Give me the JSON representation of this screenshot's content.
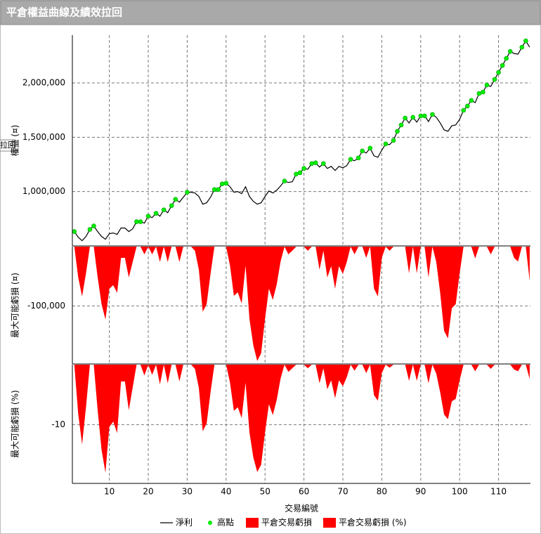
{
  "title": "平倉權益曲線及績效拉回",
  "overlay_label": "拉回",
  "chart_data": [
    {
      "type": "line",
      "y_label": "權益 (¤)",
      "grid": true,
      "xlim": [
        0.5,
        118.2
      ],
      "xticks": [
        10,
        20,
        30,
        40,
        50,
        60,
        70,
        80,
        90,
        100,
        110
      ],
      "ylim": [
        500000,
        2440000
      ],
      "yticks": [
        {
          "value": 1000000,
          "label": "1,000,000"
        },
        {
          "value": 1500000,
          "label": "1,500,000"
        },
        {
          "value": 2000000,
          "label": "2,000,000"
        }
      ],
      "x": [
        1,
        2,
        3,
        4,
        5,
        6,
        7,
        8,
        9,
        10,
        11,
        12,
        13,
        14,
        15,
        16,
        17,
        18,
        19,
        20,
        21,
        22,
        23,
        24,
        25,
        26,
        27,
        28,
        29,
        30,
        31,
        32,
        33,
        34,
        35,
        36,
        37,
        38,
        39,
        40,
        41,
        42,
        43,
        44,
        45,
        46,
        47,
        48,
        49,
        50,
        51,
        52,
        53,
        54,
        55,
        56,
        57,
        58,
        59,
        60,
        61,
        62,
        63,
        64,
        65,
        66,
        67,
        68,
        69,
        70,
        71,
        72,
        73,
        74,
        75,
        76,
        77,
        78,
        79,
        80,
        81,
        82,
        83,
        84,
        85,
        86,
        87,
        88,
        89,
        90,
        91,
        92,
        93,
        94,
        95,
        96,
        97,
        98,
        99,
        100,
        101,
        102,
        103,
        104,
        105,
        106,
        107,
        108,
        109,
        110,
        111,
        112,
        113,
        114,
        115,
        116,
        117,
        118
      ],
      "series": [
        {
          "name": "淨利",
          "style": "line",
          "color": "#000000",
          "values": [
            632000,
            580000,
            548000,
            587000,
            652000,
            684000,
            632000,
            587000,
            561000,
            613000,
            619000,
            606000,
            665000,
            665000,
            632000,
            658000,
            723000,
            723000,
            710000,
            774000,
            761000,
            800000,
            774000,
            832000,
            806000,
            871000,
            929000,
            903000,
            948000,
            994000,
            994000,
            987000,
            955000,
            884000,
            897000,
            948000,
            1019000,
            1019000,
            1071000,
            1077000,
            1045000,
            994000,
            1000000,
            981000,
            1045000,
            955000,
            910000,
            884000,
            897000,
            955000,
            1006000,
            987000,
            1013000,
            1052000,
            1097000,
            1084000,
            1090000,
            1161000,
            1174000,
            1213000,
            1206000,
            1258000,
            1265000,
            1226000,
            1258000,
            1213000,
            1232000,
            1194000,
            1232000,
            1219000,
            1239000,
            1297000,
            1284000,
            1310000,
            1374000,
            1355000,
            1400000,
            1329000,
            1316000,
            1381000,
            1439000,
            1432000,
            1471000,
            1555000,
            1613000,
            1677000,
            1632000,
            1684000,
            1639000,
            1697000,
            1697000,
            1645000,
            1710000,
            1684000,
            1632000,
            1568000,
            1555000,
            1606000,
            1613000,
            1665000,
            1748000,
            1787000,
            1839000,
            1819000,
            1903000,
            1916000,
            1981000,
            1968000,
            2032000,
            2097000,
            2161000,
            2226000,
            2290000,
            2271000,
            2265000,
            2329000,
            2387000,
            2329000
          ]
        },
        {
          "name": "高點",
          "style": "marker",
          "color": "#00ee00",
          "values": [
            632000,
            null,
            null,
            null,
            652000,
            684000,
            null,
            null,
            null,
            null,
            null,
            null,
            null,
            null,
            null,
            null,
            723000,
            723000,
            null,
            774000,
            null,
            800000,
            null,
            832000,
            null,
            871000,
            929000,
            null,
            null,
            994000,
            null,
            null,
            null,
            null,
            null,
            null,
            1019000,
            1019000,
            1071000,
            1077000,
            null,
            null,
            null,
            null,
            null,
            null,
            null,
            null,
            null,
            null,
            null,
            null,
            null,
            null,
            1097000,
            null,
            null,
            1161000,
            1174000,
            1213000,
            null,
            1258000,
            1265000,
            null,
            1258000,
            null,
            null,
            null,
            null,
            null,
            null,
            1297000,
            null,
            1310000,
            1374000,
            null,
            1400000,
            null,
            null,
            null,
            1439000,
            null,
            1471000,
            1555000,
            1613000,
            1677000,
            null,
            1684000,
            null,
            1697000,
            1697000,
            null,
            1710000,
            null,
            null,
            null,
            null,
            null,
            null,
            null,
            1748000,
            1787000,
            1839000,
            null,
            1903000,
            1916000,
            1981000,
            null,
            2032000,
            2097000,
            2161000,
            2226000,
            2290000,
            null,
            null,
            2329000,
            2387000,
            null
          ]
        }
      ]
    },
    {
      "type": "area",
      "y_label": "最大可能虧損 (¤)",
      "grid": true,
      "xlim": [
        0.5,
        118.2
      ],
      "xticks": [
        10,
        20,
        30,
        40,
        50,
        60,
        70,
        80,
        90,
        100,
        110
      ],
      "ylim": [
        -198000,
        0
      ],
      "yticks": [
        {
          "value": -100000,
          "label": "-100,000"
        }
      ],
      "x": [
        1,
        2,
        3,
        4,
        5,
        6,
        7,
        8,
        9,
        10,
        11,
        12,
        13,
        14,
        15,
        16,
        17,
        18,
        19,
        20,
        21,
        22,
        23,
        24,
        25,
        26,
        27,
        28,
        29,
        30,
        31,
        32,
        33,
        34,
        35,
        36,
        37,
        38,
        39,
        40,
        41,
        42,
        43,
        44,
        45,
        46,
        47,
        48,
        49,
        50,
        51,
        52,
        53,
        54,
        55,
        56,
        57,
        58,
        59,
        60,
        61,
        62,
        63,
        64,
        65,
        66,
        67,
        68,
        69,
        70,
        71,
        72,
        73,
        74,
        75,
        76,
        77,
        78,
        79,
        80,
        81,
        82,
        83,
        84,
        85,
        86,
        87,
        88,
        89,
        90,
        91,
        92,
        93,
        94,
        95,
        96,
        97,
        98,
        99,
        100,
        101,
        102,
        103,
        104,
        105,
        106,
        107,
        108,
        109,
        110,
        111,
        112,
        113,
        114,
        115,
        116,
        117,
        118
      ],
      "series": [
        {
          "name": "平倉交易虧損",
          "style": "area",
          "color": "#ff0000",
          "values": [
            0,
            -52000,
            -84000,
            -45000,
            0,
            0,
            -52000,
            -97000,
            -123000,
            -71000,
            -65000,
            -78000,
            -19000,
            -19000,
            -52000,
            -26000,
            0,
            0,
            -13000,
            0,
            -13000,
            0,
            -26000,
            0,
            -26000,
            0,
            0,
            -26000,
            0,
            0,
            0,
            -7000,
            -39000,
            -110000,
            -97000,
            -46000,
            0,
            0,
            0,
            0,
            -32000,
            -83000,
            -77000,
            -96000,
            -32000,
            -122000,
            -167000,
            -193000,
            -180000,
            -122000,
            -71000,
            -90000,
            -64000,
            -25000,
            0,
            -13000,
            -7000,
            0,
            0,
            0,
            -7000,
            0,
            0,
            -39000,
            -7000,
            -52000,
            -33000,
            -71000,
            -33000,
            -46000,
            -26000,
            0,
            -13000,
            0,
            0,
            -19000,
            0,
            -71000,
            -84000,
            -19000,
            0,
            -7000,
            0,
            0,
            0,
            0,
            -45000,
            0,
            -45000,
            0,
            0,
            -52000,
            0,
            -26000,
            -78000,
            -142000,
            -155000,
            -104000,
            -97000,
            -45000,
            0,
            0,
            0,
            -20000,
            0,
            0,
            0,
            -13000,
            0,
            0,
            0,
            0,
            0,
            -19000,
            -25000,
            0,
            0,
            -58000
          ]
        }
      ]
    },
    {
      "type": "area",
      "y_label": "最大可能虧損 (%)",
      "x_label": "交易編號",
      "grid": true,
      "xlim": [
        0.5,
        118.2
      ],
      "xticks": [
        10,
        20,
        30,
        40,
        50,
        60,
        70,
        80,
        90,
        100,
        110
      ],
      "ylim": [
        -19.8,
        0
      ],
      "yticks": [
        -10
      ],
      "x": [
        1,
        2,
        3,
        4,
        5,
        6,
        7,
        8,
        9,
        10,
        11,
        12,
        13,
        14,
        15,
        16,
        17,
        18,
        19,
        20,
        21,
        22,
        23,
        24,
        25,
        26,
        27,
        28,
        29,
        30,
        31,
        32,
        33,
        34,
        35,
        36,
        37,
        38,
        39,
        40,
        41,
        42,
        43,
        44,
        45,
        46,
        47,
        48,
        49,
        50,
        51,
        52,
        53,
        54,
        55,
        56,
        57,
        58,
        59,
        60,
        61,
        62,
        63,
        64,
        65,
        66,
        67,
        68,
        69,
        70,
        71,
        72,
        73,
        74,
        75,
        76,
        77,
        78,
        79,
        80,
        81,
        82,
        83,
        84,
        85,
        86,
        87,
        88,
        89,
        90,
        91,
        92,
        93,
        94,
        95,
        96,
        97,
        98,
        99,
        100,
        101,
        102,
        103,
        104,
        105,
        106,
        107,
        108,
        109,
        110,
        111,
        112,
        113,
        114,
        115,
        116,
        117,
        118
      ],
      "series": [
        {
          "name": "平倉交易虧損 (%)",
          "style": "area",
          "color": "#ff0000",
          "values": [
            0,
            -8.2,
            -13.3,
            -7.1,
            0,
            0,
            -7.6,
            -14.2,
            -18,
            -10.4,
            -9.5,
            -11.4,
            -2.8,
            -2.8,
            -7.6,
            -3.8,
            0,
            0,
            -1.8,
            0,
            -1.7,
            0,
            -3.3,
            0,
            -3.1,
            0,
            0,
            -2.8,
            0,
            0,
            0,
            -0.7,
            -3.9,
            -11.1,
            -9.8,
            -4.6,
            0,
            0,
            0,
            0,
            -3,
            -7.7,
            -7.1,
            -8.9,
            -3,
            -11.3,
            -15.5,
            -17.9,
            -16.7,
            -11.3,
            -6.6,
            -8.4,
            -5.9,
            -2.3,
            0,
            -1.2,
            -0.6,
            0,
            0,
            0,
            -0.6,
            0,
            0,
            -3.1,
            -0.6,
            -4.1,
            -2.6,
            -5.6,
            -2.6,
            -3.6,
            -2.1,
            0,
            -1,
            0,
            0,
            -1.4,
            0,
            -5.1,
            -6,
            -1.4,
            0,
            -0.5,
            0,
            0,
            0,
            0,
            -2.7,
            0,
            -2.7,
            0,
            0,
            -3.1,
            0,
            -1.5,
            -4.6,
            -8.3,
            -9.1,
            -6.1,
            -5.7,
            -2.6,
            0,
            0,
            0,
            -1.1,
            0,
            0,
            0,
            -0.7,
            0,
            0,
            0,
            0,
            0,
            -0.8,
            -1.1,
            0,
            0,
            -2.4
          ]
        }
      ]
    }
  ]
}
